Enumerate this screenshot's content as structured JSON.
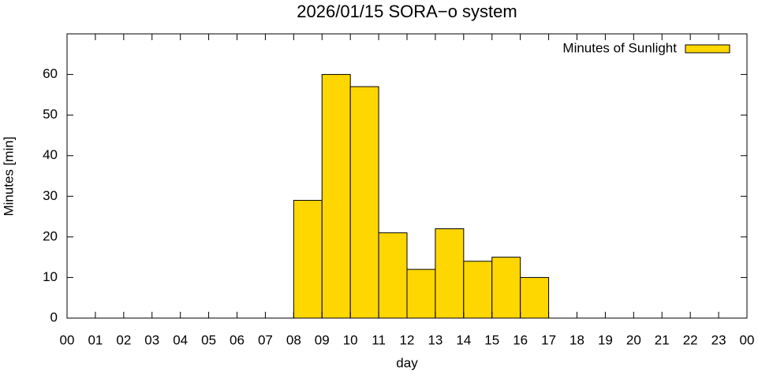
{
  "chart_data": {
    "type": "bar",
    "title": "2026/01/15 SORA−o system",
    "xlabel": "day",
    "ylabel": "Minutes [min]",
    "x": [
      0,
      1,
      2,
      3,
      4,
      5,
      6,
      7,
      8,
      9,
      10,
      11,
      12,
      13,
      14,
      15,
      16,
      17,
      18,
      19,
      20,
      21,
      22,
      23
    ],
    "series": [
      {
        "name": "Minutes of Sunlight",
        "color": "#ffd700",
        "values": [
          0,
          0,
          0,
          0,
          0,
          0,
          0,
          0,
          29,
          60,
          57,
          21,
          12,
          22,
          14,
          15,
          10,
          0,
          0,
          0,
          0,
          0,
          0,
          0
        ]
      }
    ],
    "xlim": [
      -0.5,
      23.5
    ],
    "xticks": [
      {
        "value": -0.5,
        "label": "00"
      },
      {
        "value": 0.5,
        "label": "01"
      },
      {
        "value": 1.5,
        "label": "02"
      },
      {
        "value": 2.5,
        "label": "03"
      },
      {
        "value": 3.5,
        "label": "04"
      },
      {
        "value": 4.5,
        "label": "05"
      },
      {
        "value": 5.5,
        "label": "06"
      },
      {
        "value": 6.5,
        "label": "07"
      },
      {
        "value": 7.5,
        "label": "08"
      },
      {
        "value": 8.5,
        "label": "09"
      },
      {
        "value": 9.5,
        "label": "10"
      },
      {
        "value": 10.5,
        "label": "11"
      },
      {
        "value": 11.5,
        "label": "12"
      },
      {
        "value": 12.5,
        "label": "13"
      },
      {
        "value": 13.5,
        "label": "14"
      },
      {
        "value": 14.5,
        "label": "15"
      },
      {
        "value": 15.5,
        "label": "16"
      },
      {
        "value": 16.5,
        "label": "17"
      },
      {
        "value": 17.5,
        "label": "18"
      },
      {
        "value": 18.5,
        "label": "19"
      },
      {
        "value": 19.5,
        "label": "20"
      },
      {
        "value": 20.5,
        "label": "21"
      },
      {
        "value": 21.5,
        "label": "22"
      },
      {
        "value": 22.5,
        "label": "23"
      },
      {
        "value": 23.5,
        "label": "00"
      }
    ],
    "ylim": [
      0,
      70
    ],
    "yticks": [
      0,
      10,
      20,
      30,
      40,
      50,
      60
    ],
    "legend": "top-right",
    "grid": false
  }
}
